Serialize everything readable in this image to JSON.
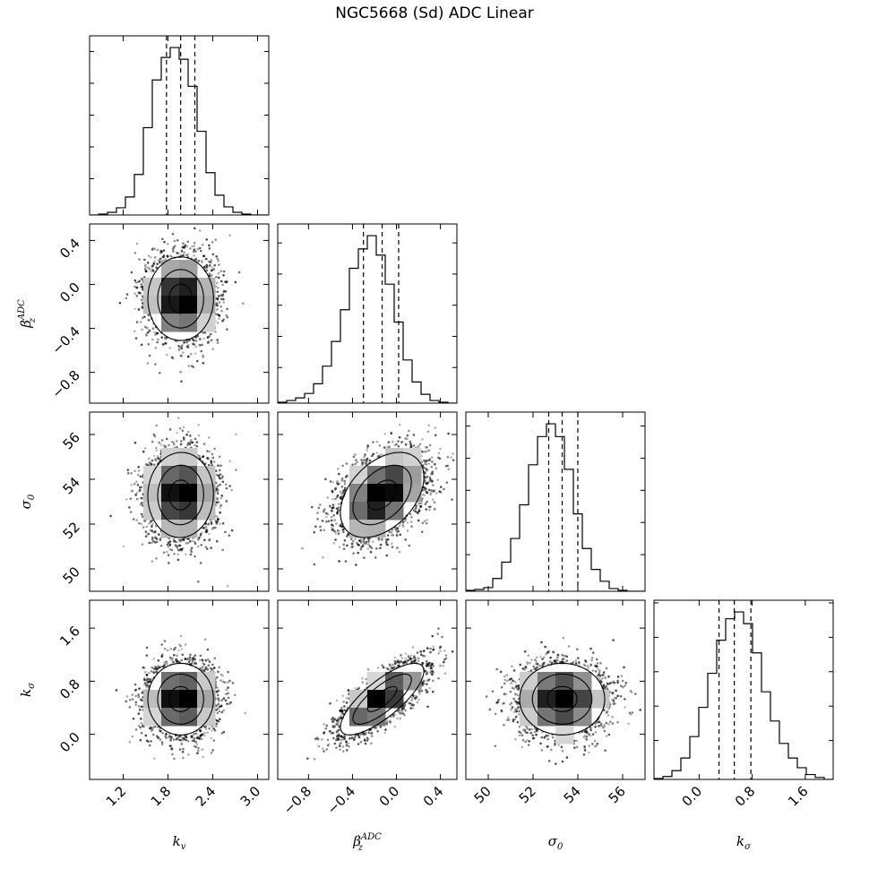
{
  "title": "NGC5668 (Sd) ADC Linear",
  "chart_data": {
    "type": "corner",
    "title": "NGC5668 (Sd) ADC Linear",
    "parameters": [
      {
        "symbol": "k",
        "subscript": "v",
        "superscript": "",
        "display": "k_v"
      },
      {
        "symbol": "β",
        "subscript": "z",
        "superscript": "ADC",
        "display": "β_z^ADC"
      },
      {
        "symbol": "σ",
        "subscript": "0",
        "superscript": "",
        "display": "σ_0"
      },
      {
        "symbol": "k",
        "subscript": "σ",
        "superscript": "",
        "display": "k_σ"
      }
    ],
    "ranges": [
      [
        0.75,
        3.15
      ],
      [
        -1.08,
        0.55
      ],
      [
        49.0,
        57.0
      ],
      [
        -0.68,
        2.02
      ]
    ],
    "ticks": [
      [
        1.2,
        1.8,
        2.4,
        3.0
      ],
      [
        -0.8,
        -0.4,
        0.0,
        0.4
      ],
      [
        50,
        52,
        54,
        56
      ],
      [
        0.0,
        0.8,
        1.6
      ]
    ],
    "tick_labels": [
      [
        "1.2",
        "1.8",
        "2.4",
        "3.0"
      ],
      [
        "−0.8",
        "−0.4",
        "0.0",
        "0.4"
      ],
      [
        "50",
        "52",
        "54",
        "56"
      ],
      [
        "0.0",
        "0.8",
        "1.6"
      ]
    ],
    "quantiles": [
      [
        1.78,
        1.97,
        2.16
      ],
      [
        -0.3,
        -0.13,
        0.02
      ],
      [
        52.7,
        53.3,
        54.0
      ],
      [
        0.3,
        0.53,
        0.78
      ]
    ],
    "histograms": [
      {
        "edges_range": [
          0.75,
          3.15
        ],
        "counts": [
          0,
          1,
          3,
          8,
          20,
          45,
          97,
          150,
          175,
          186,
          173,
          143,
          93,
          47,
          22,
          9,
          3,
          1,
          0,
          0
        ]
      },
      {
        "edges_range": [
          -1.08,
          0.55
        ],
        "counts": [
          1,
          3,
          6,
          11,
          22,
          42,
          70,
          106,
          153,
          175,
          190,
          168,
          135,
          92,
          49,
          24,
          10,
          3,
          1,
          0
        ]
      },
      {
        "edges_range": [
          49.0,
          57.0
        ],
        "counts": [
          1,
          2,
          4,
          14,
          32,
          58,
          95,
          139,
          170,
          184,
          170,
          134,
          85,
          47,
          24,
          11,
          3,
          1,
          0,
          0
        ]
      },
      {
        "edges_range": [
          -0.68,
          2.02
        ],
        "counts": [
          1,
          3,
          9,
          22,
          44,
          74,
          109,
          143,
          165,
          172,
          160,
          130,
          90,
          60,
          37,
          22,
          12,
          5,
          2,
          0
        ]
      }
    ],
    "correlations": [
      [
        1.0,
        0.0,
        0.02,
        0.0
      ],
      [
        0.0,
        1.0,
        0.42,
        0.78
      ],
      [
        0.02,
        0.42,
        1.0,
        0.0
      ],
      [
        0.0,
        0.78,
        0.0,
        1.0
      ]
    ],
    "sigmas": [
      0.22,
      0.19,
      0.95,
      0.27
    ],
    "grid": false,
    "legend": "none"
  }
}
